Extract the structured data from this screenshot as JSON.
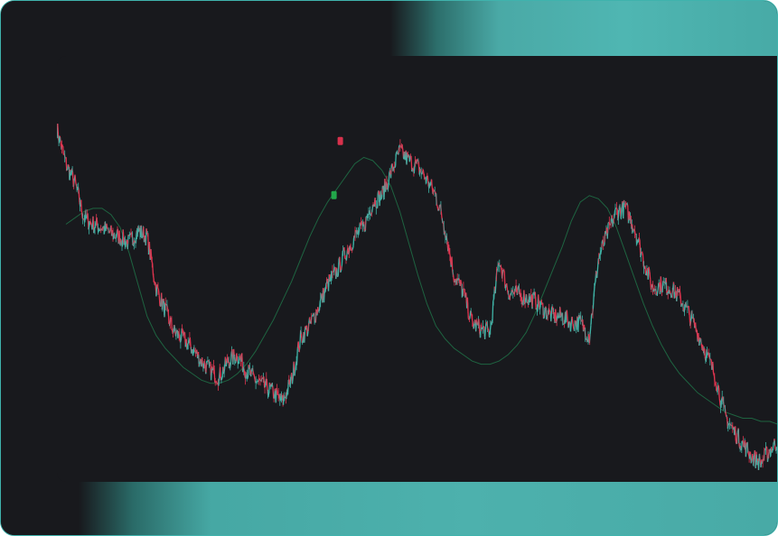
{
  "chart_data": {
    "type": "line",
    "title": "",
    "xlabel": "",
    "ylabel": "",
    "grid": false,
    "colors": {
      "background": "#18191d",
      "accent": "#4fb6b2",
      "price_down": "#e0344f",
      "price_up": "#3fb3a6",
      "smoothed": "#1f6b45",
      "marker_sell": "#d8314c",
      "marker_buy": "#22a64a"
    },
    "x": [
      0,
      10,
      20,
      30,
      40,
      50,
      60,
      70,
      80,
      90,
      100,
      110,
      120,
      130,
      140,
      150,
      160,
      170,
      180,
      190,
      200,
      210,
      220,
      230,
      240,
      250,
      260,
      270,
      280,
      290,
      300,
      310,
      320,
      330,
      340,
      350,
      360,
      370,
      380,
      390,
      400,
      410,
      420,
      430,
      440,
      450,
      460,
      470,
      480,
      490,
      500,
      510,
      520,
      530,
      540,
      550,
      560,
      570,
      580,
      590,
      600,
      610,
      620,
      630,
      640,
      650,
      660,
      670,
      680,
      690,
      700,
      710,
      720,
      730,
      740,
      750,
      760,
      770,
      780,
      790,
      800
    ],
    "series": [
      {
        "values": [
          91,
          80,
          74,
          63,
          61,
          60,
          58,
          57,
          55,
          59,
          57,
          41,
          34,
          27,
          25,
          22,
          18,
          15,
          13,
          18,
          20,
          15,
          12,
          10,
          8,
          5,
          12,
          25,
          29,
          35,
          42,
          46,
          52,
          57,
          60,
          68,
          70,
          77,
          84,
          81,
          79,
          75,
          70,
          60,
          45,
          40,
          30,
          28,
          27,
          50,
          40,
          39,
          38,
          37,
          34,
          32,
          32,
          30,
          30,
          26,
          50,
          58,
          65,
          66,
          60,
          50,
          41,
          42,
          41,
          38,
          33,
          27,
          20,
          13,
          1,
          -4,
          -8,
          -12,
          -14,
          -10,
          -7
        ]
      },
      {
        "values": [
          null,
          61,
          63,
          65,
          66,
          66,
          64,
          60,
          52,
          42,
          32,
          26,
          22,
          19,
          16,
          14,
          12,
          11,
          11,
          12,
          14,
          17,
          21,
          26,
          31,
          37,
          43,
          50,
          57,
          63,
          68,
          72,
          76,
          80,
          82,
          81,
          78,
          73,
          65,
          55,
          45,
          36,
          29,
          25,
          22,
          20,
          18,
          17,
          17,
          18,
          20,
          23,
          27,
          33,
          40,
          47,
          54,
          62,
          68,
          70,
          69,
          66,
          60,
          52,
          44,
          36,
          29,
          23,
          18,
          14,
          11,
          8,
          6,
          4,
          2,
          1,
          0,
          0,
          -1,
          -1,
          -2
        ]
      }
    ],
    "ylim": [
      -20,
      100
    ],
    "markers": [
      {
        "type": "sell",
        "x": 314,
        "y": 87
      },
      {
        "type": "buy",
        "x": 307,
        "y": 70
      }
    ]
  }
}
